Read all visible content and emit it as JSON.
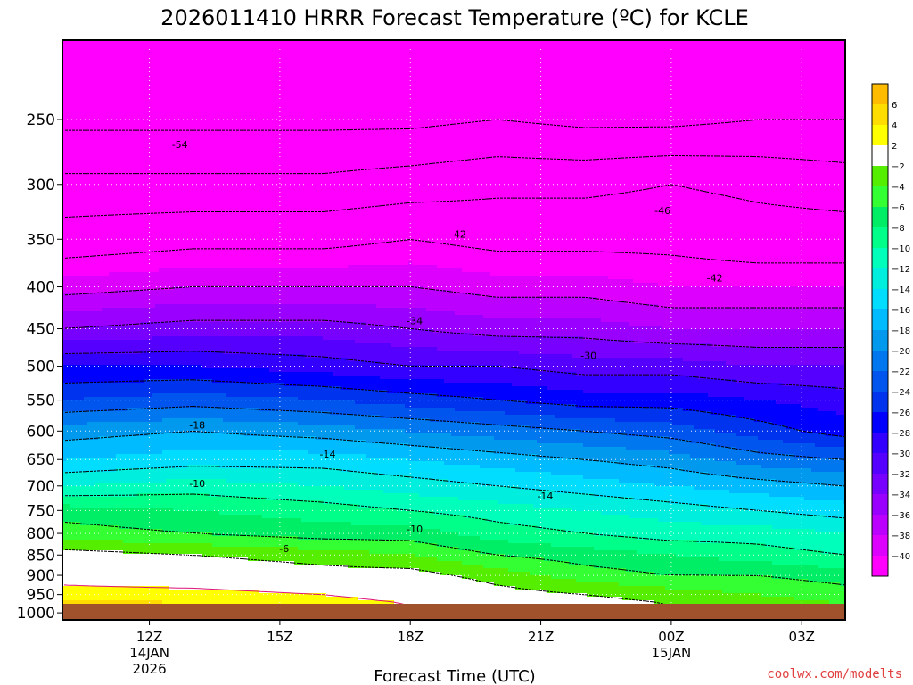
{
  "chart_data": {
    "type": "heatmap",
    "title": "2026011410 HRRR Forecast Temperature (ºC) for KCLE",
    "xlabel": "Forecast Time (UTC)",
    "ylabel": "",
    "credit": "coolwx.com/modelts",
    "y_scale": "log-pressure",
    "y_ticks": [
      250,
      300,
      350,
      400,
      450,
      500,
      550,
      600,
      650,
      700,
      750,
      800,
      850,
      900,
      950,
      1000
    ],
    "x_ticks": [
      {
        "hour": 12,
        "label": "12Z",
        "sub": [
          "14JAN",
          "2026"
        ]
      },
      {
        "hour": 15,
        "label": "15Z",
        "sub": []
      },
      {
        "hour": 18,
        "label": "18Z",
        "sub": []
      },
      {
        "hour": 21,
        "label": "21Z",
        "sub": []
      },
      {
        "hour": 24,
        "label": "00Z",
        "sub": [
          "15JAN"
        ]
      },
      {
        "hour": 27,
        "label": "03Z",
        "sub": []
      }
    ],
    "x_range": [
      10,
      28
    ],
    "y_range": [
      200,
      1020
    ],
    "surface_pressure": 975,
    "colorbar": {
      "levels": [
        -40,
        -38,
        -36,
        -34,
        -32,
        -30,
        -28,
        -26,
        -24,
        -22,
        -20,
        -18,
        -16,
        -14,
        -12,
        -10,
        -8,
        -6,
        -4,
        -2,
        2,
        4,
        6
      ],
      "colors": [
        "#ff00ff",
        "#dd00ff",
        "#bb00ff",
        "#9900ff",
        "#7700ff",
        "#5500ff",
        "#3300ff",
        "#0000ff",
        "#0033ee",
        "#0055ee",
        "#0077ee",
        "#0099ee",
        "#00bbff",
        "#00ddff",
        "#00eedd",
        "#00ffbb",
        "#00ff88",
        "#00ee66",
        "#33ff33",
        "#55ee00",
        "#ffffff",
        "#ffff00",
        "#ffdd00",
        "#ffbb00"
      ]
    },
    "profiles": [
      {
        "hour": 10,
        "points": [
          [
            250,
            -55
          ],
          [
            300,
            -49
          ],
          [
            350,
            -44
          ],
          [
            400,
            -39
          ],
          [
            450,
            -34
          ],
          [
            500,
            -28
          ],
          [
            550,
            -24
          ],
          [
            600,
            -19
          ],
          [
            650,
            -16
          ],
          [
            700,
            -12
          ],
          [
            750,
            -7
          ],
          [
            800,
            -5
          ],
          [
            850,
            -1
          ],
          [
            900,
            1
          ],
          [
            950,
            3
          ],
          [
            975,
            5
          ]
        ]
      },
      {
        "hour": 13,
        "points": [
          [
            250,
            -55
          ],
          [
            300,
            -49
          ],
          [
            350,
            -43
          ],
          [
            400,
            -38
          ],
          [
            450,
            -33
          ],
          [
            500,
            -28
          ],
          [
            550,
            -23
          ],
          [
            600,
            -18
          ],
          [
            650,
            -15
          ],
          [
            700,
            -11
          ],
          [
            750,
            -8
          ],
          [
            800,
            -6
          ],
          [
            850,
            -2
          ],
          [
            900,
            0
          ],
          [
            950,
            3
          ],
          [
            975,
            4
          ]
        ]
      },
      {
        "hour": 16,
        "points": [
          [
            250,
            -55
          ],
          [
            300,
            -49
          ],
          [
            350,
            -43
          ],
          [
            400,
            -38
          ],
          [
            450,
            -33
          ],
          [
            500,
            -29
          ],
          [
            550,
            -24
          ],
          [
            600,
            -19
          ],
          [
            650,
            -15
          ],
          [
            700,
            -12
          ],
          [
            750,
            -9
          ],
          [
            800,
            -7
          ],
          [
            850,
            -3
          ],
          [
            900,
            -1
          ],
          [
            950,
            2
          ],
          [
            975,
            3
          ]
        ]
      },
      {
        "hour": 18,
        "points": [
          [
            250,
            -55
          ],
          [
            300,
            -48
          ],
          [
            350,
            -42
          ],
          [
            400,
            -38
          ],
          [
            450,
            -34
          ],
          [
            500,
            -30
          ],
          [
            550,
            -25
          ],
          [
            600,
            -20
          ],
          [
            650,
            -16
          ],
          [
            700,
            -13
          ],
          [
            750,
            -10
          ],
          [
            800,
            -7
          ],
          [
            850,
            -4
          ],
          [
            900,
            -1
          ],
          [
            950,
            1
          ],
          [
            975,
            2
          ]
        ]
      },
      {
        "hour": 20,
        "points": [
          [
            250,
            -54
          ],
          [
            300,
            -47
          ],
          [
            350,
            -43
          ],
          [
            400,
            -39
          ],
          [
            450,
            -35
          ],
          [
            500,
            -30
          ],
          [
            550,
            -26
          ],
          [
            600,
            -21
          ],
          [
            650,
            -17
          ],
          [
            700,
            -14
          ],
          [
            750,
            -11
          ],
          [
            800,
            -9
          ],
          [
            850,
            -6
          ],
          [
            900,
            -3
          ],
          [
            950,
            -1
          ],
          [
            975,
            1
          ]
        ]
      },
      {
        "hour": 22,
        "points": [
          [
            250,
            -55
          ],
          [
            300,
            -47
          ],
          [
            350,
            -43
          ],
          [
            400,
            -39
          ],
          [
            450,
            -35
          ],
          [
            500,
            -31
          ],
          [
            550,
            -27
          ],
          [
            600,
            -22
          ],
          [
            650,
            -18
          ],
          [
            700,
            -15
          ],
          [
            750,
            -12
          ],
          [
            800,
            -10
          ],
          [
            850,
            -7
          ],
          [
            900,
            -5
          ],
          [
            950,
            -2
          ],
          [
            975,
            -1
          ]
        ]
      },
      {
        "hour": 24,
        "points": [
          [
            250,
            -55
          ],
          [
            300,
            -46
          ],
          [
            350,
            -43
          ],
          [
            400,
            -40
          ],
          [
            450,
            -36
          ],
          [
            500,
            -31
          ],
          [
            550,
            -27
          ],
          [
            600,
            -23
          ],
          [
            650,
            -19
          ],
          [
            700,
            -16
          ],
          [
            750,
            -13
          ],
          [
            800,
            -11
          ],
          [
            850,
            -8
          ],
          [
            900,
            -6
          ],
          [
            950,
            -3
          ],
          [
            975,
            -2
          ]
        ]
      },
      {
        "hour": 26,
        "points": [
          [
            250,
            -54
          ],
          [
            300,
            -47
          ],
          [
            350,
            -44
          ],
          [
            400,
            -40
          ],
          [
            450,
            -36
          ],
          [
            500,
            -32
          ],
          [
            550,
            -28
          ],
          [
            600,
            -25
          ],
          [
            650,
            -21
          ],
          [
            700,
            -17
          ],
          [
            750,
            -14
          ],
          [
            800,
            -11
          ],
          [
            850,
            -9
          ],
          [
            900,
            -6
          ],
          [
            950,
            -4
          ],
          [
            975,
            -3
          ]
        ]
      },
      {
        "hour": 28,
        "points": [
          [
            250,
            -54
          ],
          [
            300,
            -48
          ],
          [
            350,
            -44
          ],
          [
            400,
            -40
          ],
          [
            450,
            -36
          ],
          [
            500,
            -32
          ],
          [
            550,
            -29
          ],
          [
            600,
            -27
          ],
          [
            650,
            -22
          ],
          [
            700,
            -18
          ],
          [
            750,
            -15
          ],
          [
            800,
            -12
          ],
          [
            850,
            -10
          ],
          [
            900,
            -7
          ],
          [
            950,
            -5
          ],
          [
            975,
            -4
          ]
        ]
      }
    ],
    "contour_levels": [
      -54,
      -50,
      -46,
      -42,
      -38,
      -34,
      -30,
      -26,
      -22,
      -18,
      -14,
      -10,
      -6,
      -2,
      2
    ],
    "contour_labels": [
      {
        "hour": 12.7,
        "pressure": 268,
        "value": "-54"
      },
      {
        "hour": 23.8,
        "pressure": 323,
        "value": "-46"
      },
      {
        "hour": 19.1,
        "pressure": 345,
        "value": "-42"
      },
      {
        "hour": 25.0,
        "pressure": 390,
        "value": "-42"
      },
      {
        "hour": 18.1,
        "pressure": 440,
        "value": "-34"
      },
      {
        "hour": 22.1,
        "pressure": 485,
        "value": "-30"
      },
      {
        "hour": 13.1,
        "pressure": 590,
        "value": "-18"
      },
      {
        "hour": 16.1,
        "pressure": 640,
        "value": "-14"
      },
      {
        "hour": 21.1,
        "pressure": 720,
        "value": "-14"
      },
      {
        "hour": 13.1,
        "pressure": 695,
        "value": "-10"
      },
      {
        "hour": 18.1,
        "pressure": 790,
        "value": "-10"
      },
      {
        "hour": 15.1,
        "pressure": 835,
        "value": "-6"
      }
    ]
  }
}
